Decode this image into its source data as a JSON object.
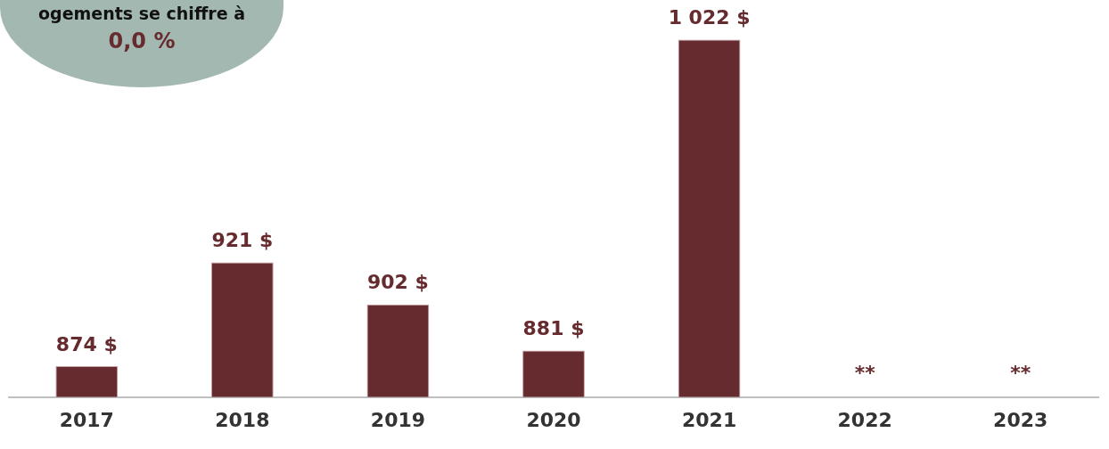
{
  "chart_data": {
    "type": "bar",
    "categories": [
      "2017",
      "2018",
      "2019",
      "2020",
      "2021",
      "2022",
      "2023"
    ],
    "values": [
      874,
      921,
      902,
      881,
      1022,
      null,
      null
    ],
    "value_labels": [
      "874 $",
      "921 $",
      "902 $",
      "881 $",
      "1 022 $",
      "**",
      "**"
    ],
    "color": "#662b2e",
    "grid": false,
    "legend": false,
    "annotations": [
      "ogements se chiffre à",
      "0,0 %"
    ]
  }
}
